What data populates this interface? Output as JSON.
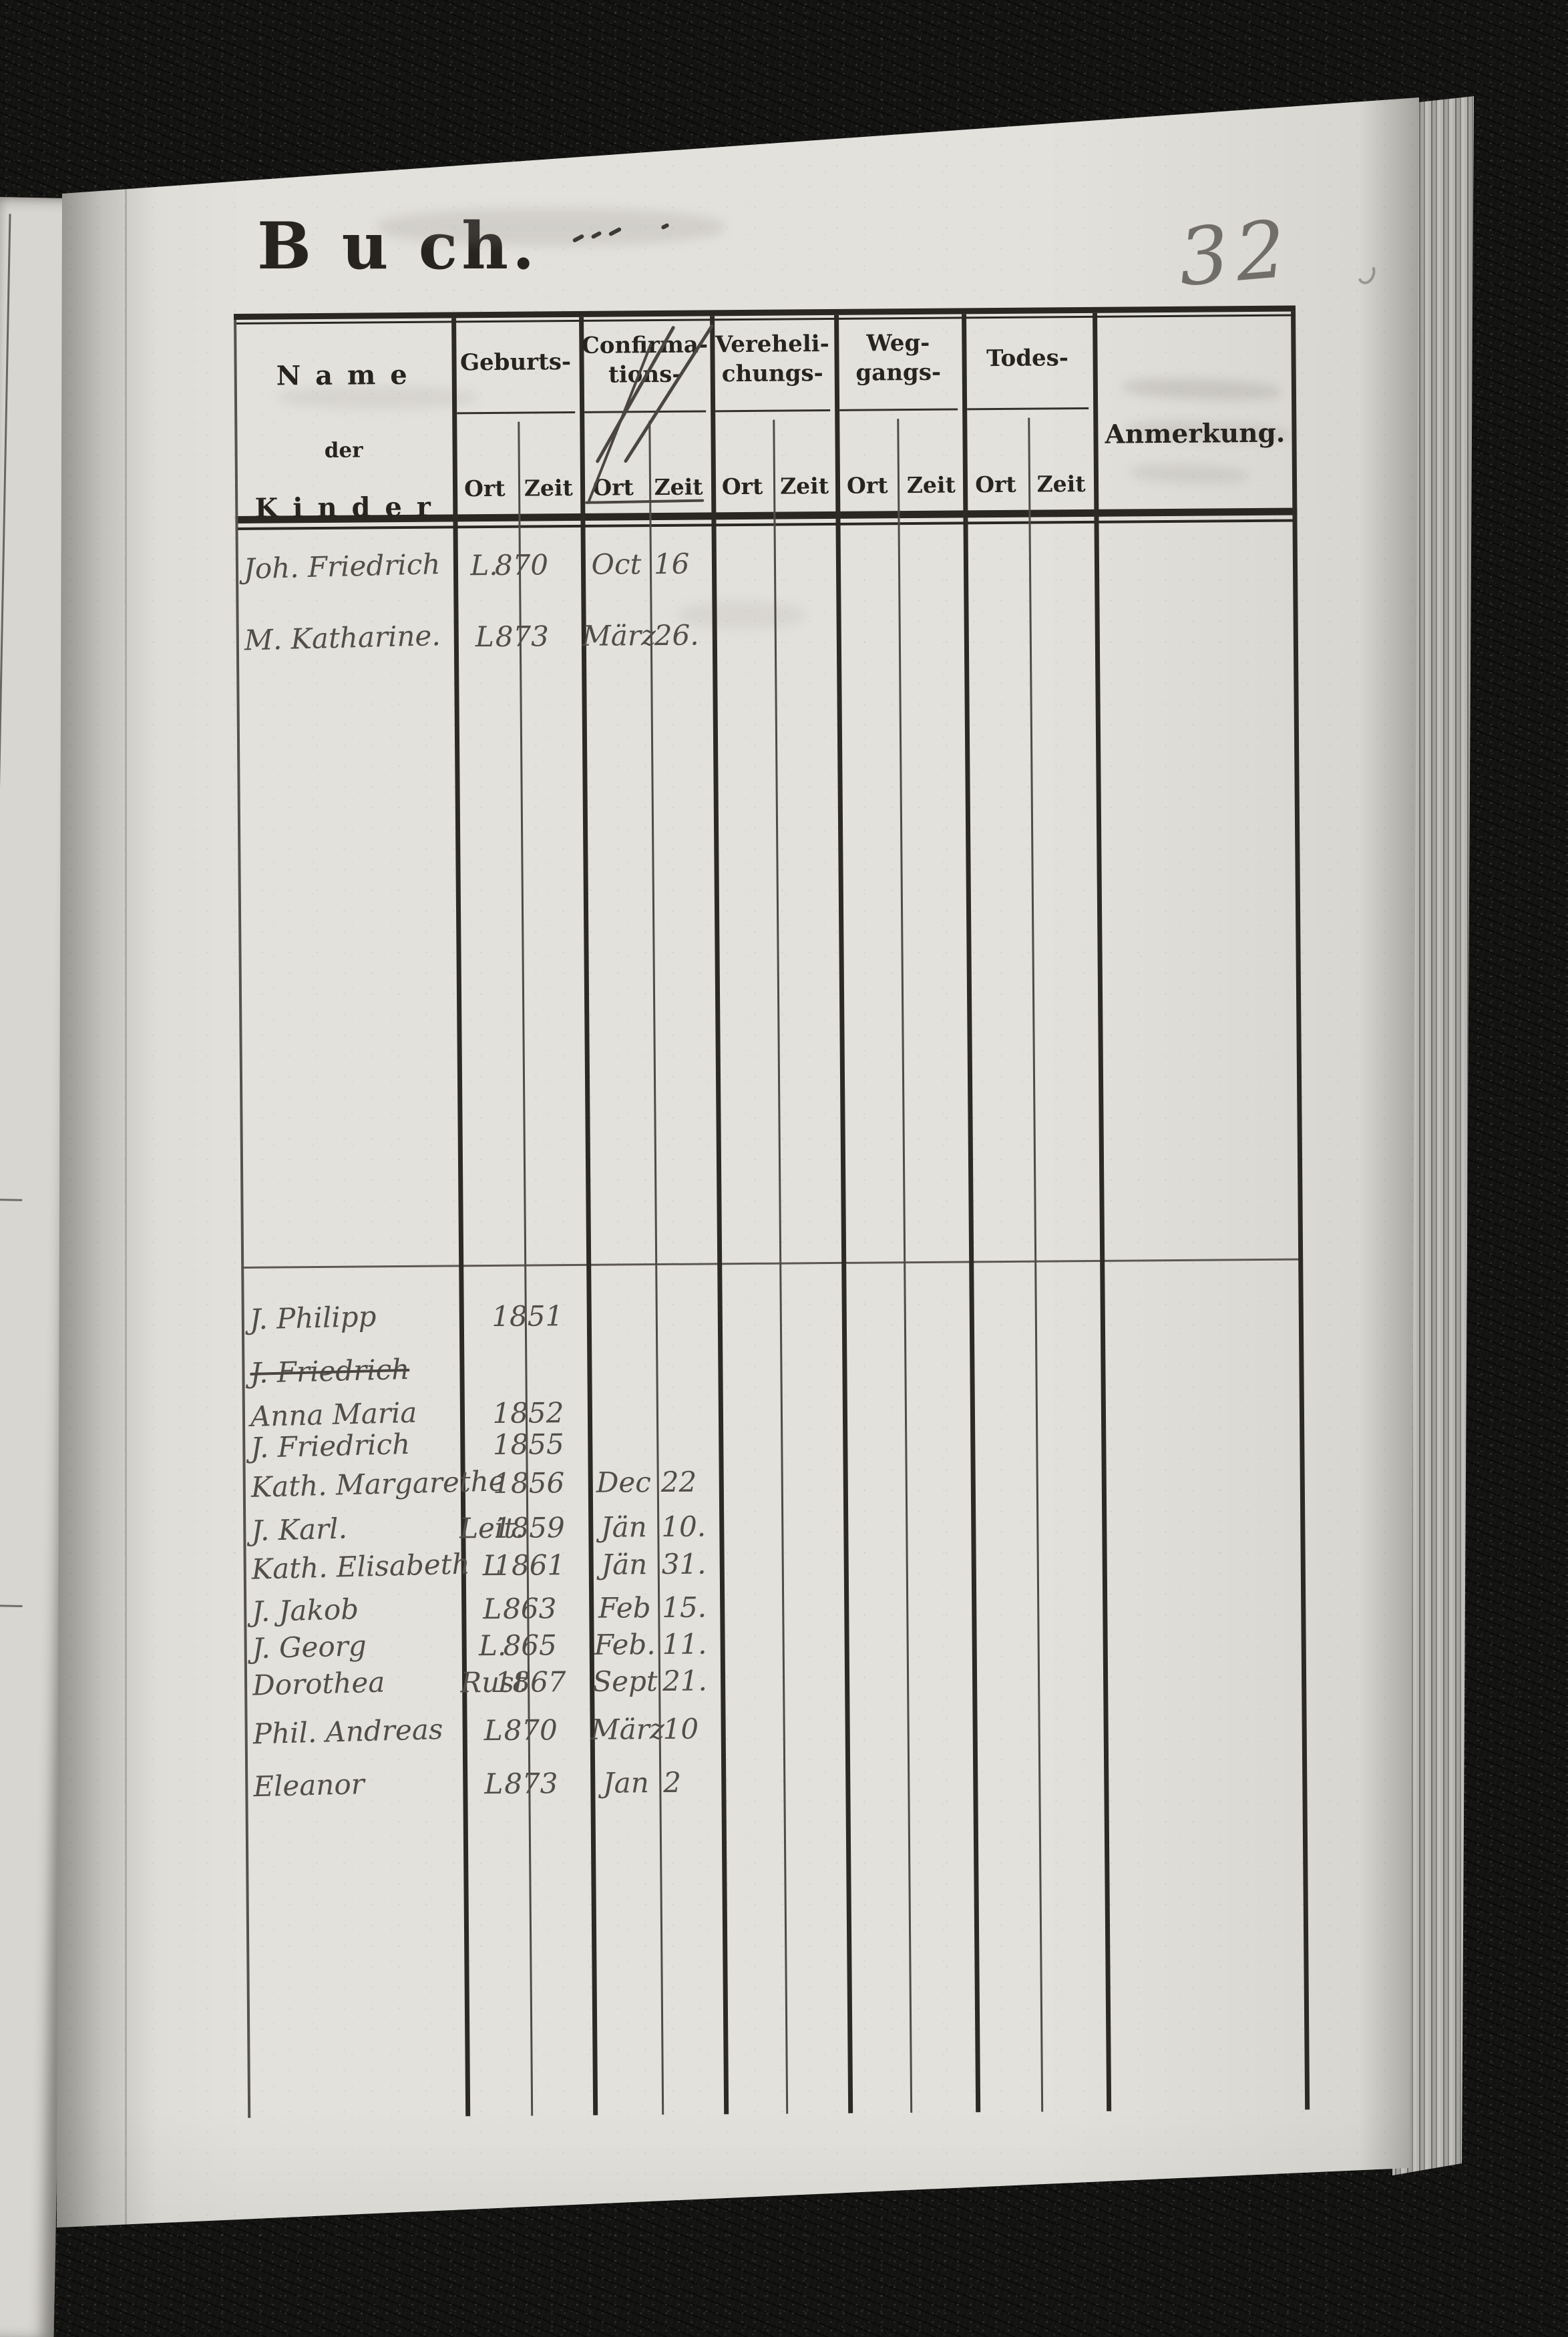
{
  "page": {
    "title": "B u ch.",
    "page_number": "32"
  },
  "table": {
    "name_col": {
      "line1": "N a m e",
      "line2": "der",
      "line3": "K i n d e r"
    },
    "col_groups": [
      {
        "id": "geburts",
        "label": "Geburts-",
        "label2": "",
        "struck": false
      },
      {
        "id": "confirmations",
        "label": "Confirma-",
        "label2": "tions-",
        "struck": true
      },
      {
        "id": "verehelichungs",
        "label": "Vereheli-",
        "label2": "chungs-",
        "struck": false
      },
      {
        "id": "weggangs",
        "label": "Weg-",
        "label2": "gangs-",
        "struck": false
      },
      {
        "id": "todes",
        "label": "Todes-",
        "label2": "",
        "struck": false
      }
    ],
    "subheaders": {
      "ort": "Ort",
      "zeit": "Zeit"
    },
    "anmerkung": "Anmerkung."
  },
  "entries_upper": [
    {
      "name": "Joh. Friedrich",
      "ort": "L.",
      "jahr": "870",
      "monat": "Oct",
      "tag": "16",
      "struck": false
    },
    {
      "name": "M. Katharine.",
      "ort": "L",
      "jahr": "873",
      "monat": "März",
      "tag": "26.",
      "struck": false
    }
  ],
  "entries_lower": [
    {
      "name": "J. Philipp",
      "ort": "",
      "jahr": "1851",
      "monat": "",
      "tag": "",
      "struck": false
    },
    {
      "name": "J. Friedrich",
      "ort": "",
      "jahr": "",
      "monat": "",
      "tag": "",
      "struck": true
    },
    {
      "name": "Anna Maria",
      "ort": "",
      "jahr": "1852",
      "monat": "",
      "tag": "",
      "struck": false
    },
    {
      "name": "J. Friedrich",
      "ort": "",
      "jahr": "1855",
      "monat": "",
      "tag": "",
      "struck": false
    },
    {
      "name": "Kath. Margarethe",
      "ort": "",
      "jahr": "1856",
      "monat": "Dec",
      "tag": "22",
      "struck": false
    },
    {
      "name": "J. Karl.",
      "ort": "Leit.",
      "jahr": "1859",
      "monat": "Jän",
      "tag": "10.",
      "struck": false
    },
    {
      "name": "Kath. Elisabeth",
      "ort": "L",
      "jahr": "1861",
      "monat": "Jän",
      "tag": "31.",
      "struck": false
    },
    {
      "name": "J. Jakob",
      "ort": "L",
      "jahr": "863",
      "monat": "Feb",
      "tag": "15.",
      "struck": false
    },
    {
      "name": "J. Georg",
      "ort": "L.",
      "jahr": "865",
      "monat": "Feb.",
      "tag": "11.",
      "struck": false
    },
    {
      "name": "Dorothea",
      "ort": "Rust",
      "jahr": "1867",
      "monat": "Sept",
      "tag": "21.",
      "struck": false
    },
    {
      "name": "Phil. Andreas",
      "ort": "L",
      "jahr": "870",
      "monat": "März",
      "tag": "10",
      "struck": false
    },
    {
      "name": "Eleanor",
      "ort": "L",
      "jahr": "873",
      "monat": "Jan",
      "tag": "2",
      "struck": false
    }
  ]
}
